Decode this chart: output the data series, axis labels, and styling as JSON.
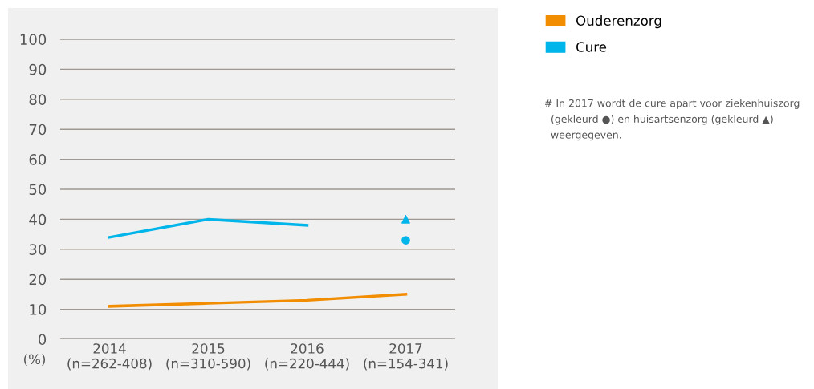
{
  "chart_data": {
    "type": "line",
    "ylabel": "(%)",
    "categories": [
      "2014\n(n=262-408)",
      "2015\n(n=310-590)",
      "2016\n(n=220-444)",
      "2017\n(n=154-341)"
    ],
    "series": [
      {
        "name": "Ouderenzorg",
        "color": "#f28c00",
        "values": [
          11,
          12,
          13,
          15
        ]
      },
      {
        "name": "Cure",
        "color": "#00b5ea",
        "values": [
          34,
          40,
          38,
          null
        ]
      },
      {
        "type": "scatter",
        "marker": "circle",
        "color": "#00b5ea",
        "x": [
          "2017\n(n=154-341)"
        ],
        "values": [
          33
        ]
      },
      {
        "type": "scatter",
        "marker": "triangle",
        "color": "#00b5ea",
        "x": [
          "2017\n(n=154-341)"
        ],
        "values": [
          40
        ]
      }
    ],
    "ylim": [
      0,
      100
    ],
    "yticks": [
      0,
      10,
      20,
      30,
      40,
      50,
      60,
      70,
      80,
      90,
      100
    ],
    "grid": "y",
    "legend": "top right",
    "marker": "none",
    "line_style": "solid",
    "annotations": [
      "# In 2017 wordt de cure apart voor ziekenhuiszorg\n  (gekleurd ●) en huisartsenzorg (gekleurd ▲)\n  weergegeven."
    ]
  }
}
